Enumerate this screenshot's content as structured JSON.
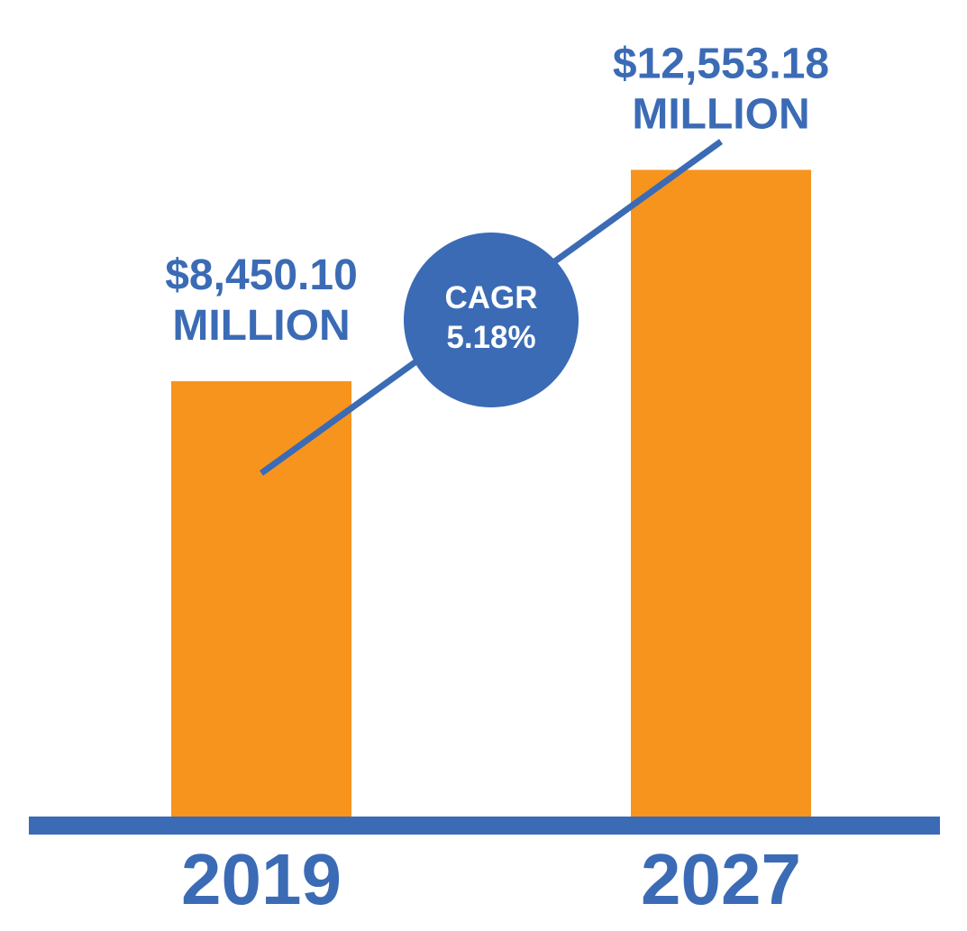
{
  "chart_data": {
    "type": "bar",
    "categories": [
      "2019",
      "2027"
    ],
    "values": [
      8450.1,
      12553.18
    ],
    "value_labels": [
      [
        "$8,450.10",
        "MILLION"
      ],
      [
        "$12,553.18",
        "MILLION"
      ]
    ],
    "title": "",
    "xlabel": "",
    "ylabel": "",
    "ylim": [
      0,
      15850
    ],
    "grid": false,
    "legend": "none",
    "annotation": {
      "lines": [
        "CAGR",
        "5.18%"
      ]
    },
    "colors": {
      "bar": "#F7941E",
      "accent": "#3B6BB5",
      "badge_text": "#FFFFFF"
    }
  }
}
